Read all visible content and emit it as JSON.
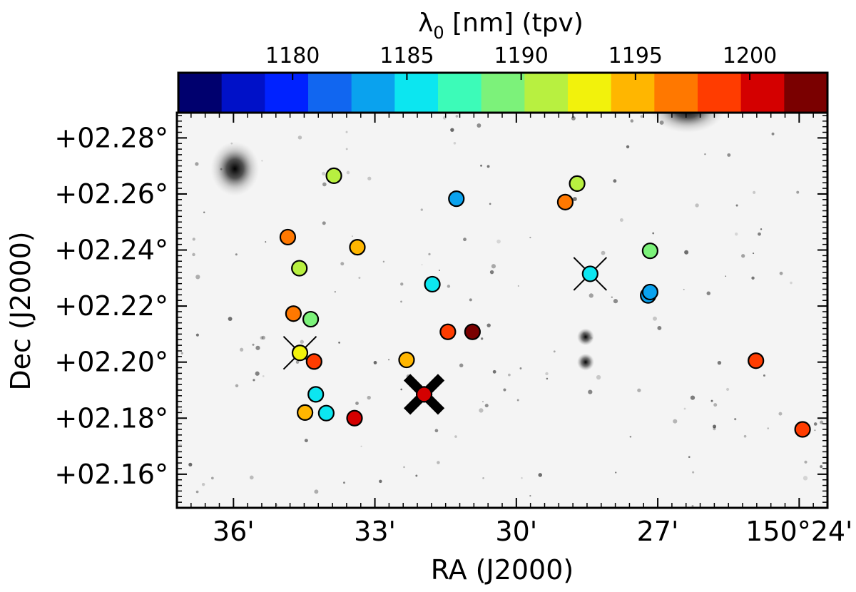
{
  "chart_data": {
    "type": "scatter",
    "colorbar": {
      "title_symbol": "λ",
      "title_subscript": "0",
      "title_rest": " [nm] (tpv)",
      "range": [
        1175.0,
        1203.4
      ],
      "ticks": [
        1180,
        1185,
        1190,
        1195,
        1200
      ],
      "tick_labels": [
        "1180",
        "1185",
        "1190",
        "1195",
        "1200"
      ],
      "segment_colors": [
        "#00006e",
        "#0011c8",
        "#0022ff",
        "#1166f0",
        "#0aa2ee",
        "#0ce6f0",
        "#3cfbb8",
        "#7cf27a",
        "#b8f040",
        "#f2f20c",
        "#ffb600",
        "#ff7800",
        "#ff3c00",
        "#d40000",
        "#7a0000"
      ]
    },
    "x_axis": {
      "label": "RA (J2000)",
      "range_deg": [
        150.62,
        150.39
      ],
      "ticks_deg": [
        150.6,
        150.55,
        150.5,
        150.45,
        150.4
      ],
      "tick_labels": [
        "36'",
        "33'",
        "30'",
        "27'",
        "150°24'"
      ]
    },
    "y_axis": {
      "label": "Dec (J2000)",
      "range_deg": [
        2.148,
        2.289
      ],
      "ticks_deg": [
        2.16,
        2.18,
        2.2,
        2.22,
        2.24,
        2.26,
        2.28
      ],
      "tick_labels": [
        "+02.16°",
        "+02.18°",
        "+02.20°",
        "+02.22°",
        "+02.24°",
        "+02.26°",
        "+02.28°"
      ]
    },
    "background_sources": [
      {
        "ra": 150.5995,
        "dec": 2.269,
        "kind": "galaxy"
      },
      {
        "ra": 150.4395,
        "dec": 2.29,
        "kind": "bright-star"
      },
      {
        "ra": 150.4755,
        "dec": 2.209,
        "kind": "star"
      },
      {
        "ra": 150.4755,
        "dec": 2.2,
        "kind": "star"
      }
    ],
    "points": [
      {
        "ra": 150.5645,
        "dec": 2.2665,
        "wavelength_nm": 1191.2
      },
      {
        "ra": 150.5212,
        "dec": 2.2583,
        "wavelength_nm": 1183.0
      },
      {
        "ra": 150.4785,
        "dec": 2.2637,
        "wavelength_nm": 1191.0
      },
      {
        "ra": 150.4827,
        "dec": 2.2571,
        "wavelength_nm": 1196.8
      },
      {
        "ra": 150.5808,
        "dec": 2.2446,
        "wavelength_nm": 1196.8
      },
      {
        "ra": 150.5562,
        "dec": 2.241,
        "wavelength_nm": 1195.2
      },
      {
        "ra": 150.5767,
        "dec": 2.2335,
        "wavelength_nm": 1191.0
      },
      {
        "ra": 150.4527,
        "dec": 2.2397,
        "wavelength_nm": 1189.8
      },
      {
        "ra": 150.4739,
        "dec": 2.2315,
        "wavelength_nm": 1185.6,
        "marker": "thin-cross"
      },
      {
        "ra": 150.5297,
        "dec": 2.2278,
        "wavelength_nm": 1185.8
      },
      {
        "ra": 150.4534,
        "dec": 2.2238,
        "wavelength_nm": 1183.4
      },
      {
        "ra": 150.4527,
        "dec": 2.225,
        "wavelength_nm": 1182.8
      },
      {
        "ra": 150.5788,
        "dec": 2.2173,
        "wavelength_nm": 1196.8
      },
      {
        "ra": 150.5727,
        "dec": 2.2153,
        "wavelength_nm": 1189.0
      },
      {
        "ra": 150.5242,
        "dec": 2.2108,
        "wavelength_nm": 1198.6
      },
      {
        "ra": 150.5155,
        "dec": 2.2108,
        "wavelength_nm": 1201.8
      },
      {
        "ra": 150.5765,
        "dec": 2.2033,
        "wavelength_nm": 1192.6,
        "marker": "thin-cross"
      },
      {
        "ra": 150.5715,
        "dec": 2.2002,
        "wavelength_nm": 1198.6
      },
      {
        "ra": 150.5388,
        "dec": 2.2008,
        "wavelength_nm": 1194.6
      },
      {
        "ra": 150.4153,
        "dec": 2.2005,
        "wavelength_nm": 1198.6
      },
      {
        "ra": 150.5326,
        "dec": 2.1885,
        "wavelength_nm": 1199.8,
        "marker": "bold-cross"
      },
      {
        "ra": 150.5709,
        "dec": 2.1885,
        "wavelength_nm": 1186.2
      },
      {
        "ra": 150.5747,
        "dec": 2.182,
        "wavelength_nm": 1194.6
      },
      {
        "ra": 150.5672,
        "dec": 2.1818,
        "wavelength_nm": 1186.2
      },
      {
        "ra": 150.5572,
        "dec": 2.18,
        "wavelength_nm": 1199.8
      },
      {
        "ra": 150.3988,
        "dec": 2.176,
        "wavelength_nm": 1198.6
      }
    ]
  }
}
